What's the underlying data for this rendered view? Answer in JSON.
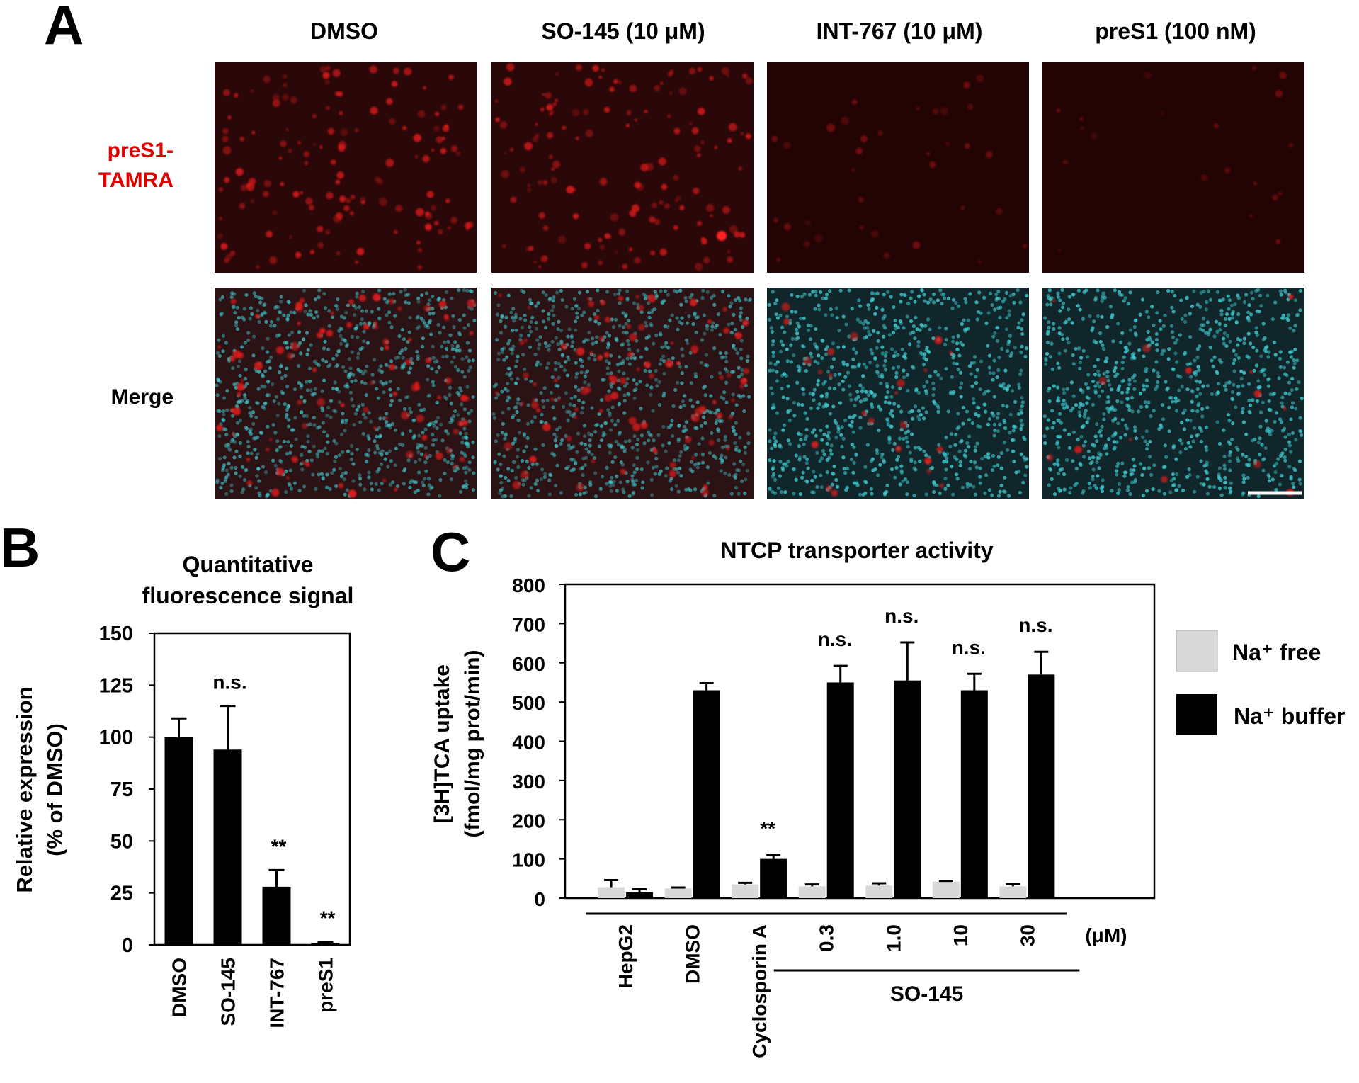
{
  "panel_a": {
    "letter": "A",
    "columns": [
      "DMSO",
      "SO-145 (10 μM)",
      "INT-767 (10 μM)",
      "preS1 (100 nM)"
    ],
    "row_labels": {
      "top_line1": "preS1-",
      "top_line2": "TAMRA",
      "bottom": "Merge"
    },
    "intensity": [
      1.0,
      1.0,
      0.25,
      0.15
    ],
    "colors": {
      "tamra": "#e31a1c",
      "nuclei": "#3fc9cf",
      "label_red": "#e00000"
    }
  },
  "chart_data": [
    {
      "type": "bar",
      "panel": "B",
      "title_line1": "Quantitative",
      "title_line2": "fluorescence signal",
      "ylabel_line1": "Relative expression",
      "ylabel_line2": "(% of DMSO)",
      "ylim": [
        0,
        150
      ],
      "yticks": [
        0,
        25,
        50,
        75,
        100,
        125,
        150
      ],
      "categories": [
        "DMSO",
        "SO-145",
        "INT-767",
        "preS1"
      ],
      "values": [
        100,
        94,
        28,
        1
      ],
      "errors": [
        9,
        21,
        8,
        0.5
      ],
      "annotations": [
        "",
        "n.s.",
        "**",
        "**"
      ],
      "bar_color": "#000000"
    },
    {
      "type": "bar",
      "panel": "C",
      "title": "NTCP transporter activity",
      "ylabel_line1": "[3H]TCA uptake",
      "ylabel_line2": "(fmol/mg prot/min)",
      "ylim": [
        0,
        800
      ],
      "yticks": [
        0,
        100,
        200,
        300,
        400,
        500,
        600,
        700,
        800
      ],
      "categories": [
        "HepG2",
        "DMSO",
        "Cyclosporin A",
        "0.3",
        "1.0",
        "10",
        "30"
      ],
      "group_label": "SO-145",
      "unit_label": "(μM)",
      "series": [
        {
          "name": "Na⁺ free",
          "color": "#d9d9d9",
          "values": [
            28,
            25,
            35,
            30,
            32,
            42,
            30
          ],
          "errors": [
            18,
            2,
            4,
            5,
            6,
            2,
            6
          ]
        },
        {
          "name": "Na⁺ buffer",
          "color": "#000000",
          "values": [
            15,
            530,
            100,
            550,
            555,
            530,
            570
          ],
          "errors": [
            8,
            18,
            10,
            42,
            97,
            42,
            58
          ]
        }
      ],
      "annotations": [
        "",
        "",
        "**",
        "n.s.",
        "n.s.",
        "n.s.",
        "n.s."
      ],
      "legend": [
        "Na⁺ free",
        "Na⁺ buffer"
      ]
    }
  ]
}
